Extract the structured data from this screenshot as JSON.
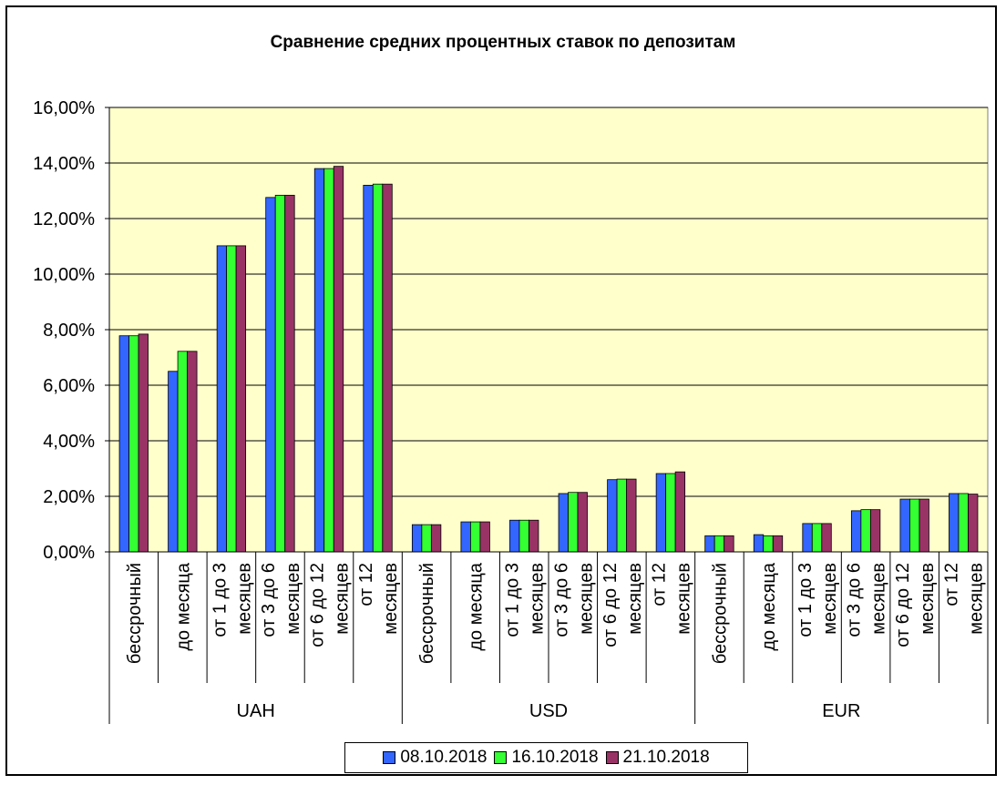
{
  "chart_data": {
    "type": "bar",
    "title": "Сравнение средних процентных ставок по депозитам",
    "ylim": [
      0,
      16
    ],
    "yticks": [
      0,
      2,
      4,
      6,
      8,
      10,
      12,
      14,
      16
    ],
    "ytick_labels": [
      "0,00%",
      "2,00%",
      "4,00%",
      "6,00%",
      "8,00%",
      "10,00%",
      "12,00%",
      "14,00%",
      "16,00%"
    ],
    "grid": true,
    "legend_position": "bottom",
    "groups": [
      "UAH",
      "USD",
      "EUR"
    ],
    "categories": [
      {
        "group": "UAH",
        "label": [
          "бессрочный"
        ]
      },
      {
        "group": "UAH",
        "label": [
          "до месяца"
        ]
      },
      {
        "group": "UAH",
        "label": [
          "от 1 до 3",
          "месяцев"
        ]
      },
      {
        "group": "UAH",
        "label": [
          "от 3 до 6",
          "месяцев"
        ]
      },
      {
        "group": "UAH",
        "label": [
          "от 6 до 12",
          "месяцев"
        ]
      },
      {
        "group": "UAH",
        "label": [
          "от 12",
          "месяцев"
        ]
      },
      {
        "group": "USD",
        "label": [
          "бессрочный"
        ]
      },
      {
        "group": "USD",
        "label": [
          "до месяца"
        ]
      },
      {
        "group": "USD",
        "label": [
          "от 1 до 3",
          "месяцев"
        ]
      },
      {
        "group": "USD",
        "label": [
          "от 3 до 6",
          "месяцев"
        ]
      },
      {
        "group": "USD",
        "label": [
          "от 6 до 12",
          "месяцев"
        ]
      },
      {
        "group": "USD",
        "label": [
          "от 12",
          "месяцев"
        ]
      },
      {
        "group": "EUR",
        "label": [
          "бессрочный"
        ]
      },
      {
        "group": "EUR",
        "label": [
          "до месяца"
        ]
      },
      {
        "group": "EUR",
        "label": [
          "от 1 до 3",
          "месяцев"
        ]
      },
      {
        "group": "EUR",
        "label": [
          "от 3 до 6",
          "месяцев"
        ]
      },
      {
        "group": "EUR",
        "label": [
          "от 6 до 12",
          "месяцев"
        ]
      },
      {
        "group": "EUR",
        "label": [
          "от 12",
          "месяцев"
        ]
      }
    ],
    "series": [
      {
        "name": "08.10.2018",
        "color": "#3366ff",
        "values": [
          7.78,
          6.5,
          11.02,
          12.76,
          13.8,
          13.2,
          0.98,
          1.08,
          1.14,
          2.1,
          2.6,
          2.82,
          0.58,
          0.62,
          1.02,
          1.48,
          1.9,
          2.1
        ]
      },
      {
        "name": "16.10.2018",
        "color": "#33ff33",
        "values": [
          7.78,
          7.22,
          11.02,
          12.84,
          13.8,
          13.24,
          0.98,
          1.08,
          1.14,
          2.14,
          2.62,
          2.82,
          0.58,
          0.58,
          1.02,
          1.52,
          1.9,
          2.1
        ]
      },
      {
        "name": "21.10.2018",
        "color": "#993366",
        "values": [
          7.84,
          7.22,
          11.02,
          12.84,
          13.88,
          13.24,
          0.98,
          1.08,
          1.14,
          2.14,
          2.62,
          2.88,
          0.58,
          0.58,
          1.02,
          1.52,
          1.9,
          2.08
        ]
      }
    ]
  },
  "colors": {
    "plot_background": "#ffffcc",
    "gridline": "#000000"
  }
}
